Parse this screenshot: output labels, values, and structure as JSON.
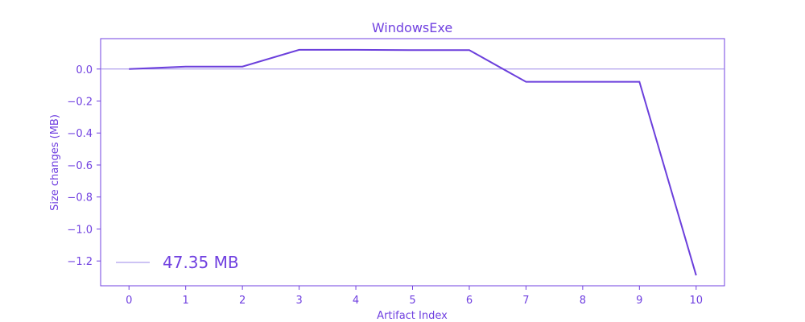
{
  "chart_data": {
    "type": "line",
    "title": "WindowsExe",
    "xlabel": "Artifact Index",
    "ylabel": "Size changes (MB)",
    "x": [
      0,
      1,
      2,
      3,
      4,
      5,
      6,
      7,
      8,
      9,
      10
    ],
    "series": [
      {
        "values": [
          0.0,
          0.015,
          0.015,
          0.12,
          0.12,
          0.118,
          0.118,
          -0.08,
          -0.08,
          -0.08,
          -1.29
        ]
      }
    ],
    "x_ticks": [
      "0",
      "1",
      "2",
      "3",
      "4",
      "5",
      "6",
      "7",
      "8",
      "9",
      "10"
    ],
    "y_ticks": [
      {
        "value": 0.0,
        "label": "0.0"
      },
      {
        "value": -0.2,
        "label": "−0.2"
      },
      {
        "value": -0.4,
        "label": "−0.4"
      },
      {
        "value": -0.6,
        "label": "−0.6"
      },
      {
        "value": -0.8,
        "label": "−0.8"
      },
      {
        "value": -1.0,
        "label": "−1.0"
      },
      {
        "value": -1.2,
        "label": "−1.2"
      }
    ],
    "xlim": [
      -0.5,
      10.5
    ],
    "ylim": [
      -1.355,
      0.19
    ],
    "reference_line": 0.0,
    "legend": {
      "label": "47.35 MB",
      "placement": "lower-left"
    },
    "grid": false,
    "colors": {
      "line": "#6b3fdc",
      "text": "#7040e0",
      "axes": "#7040e0",
      "reference": "#9b87e8"
    }
  }
}
